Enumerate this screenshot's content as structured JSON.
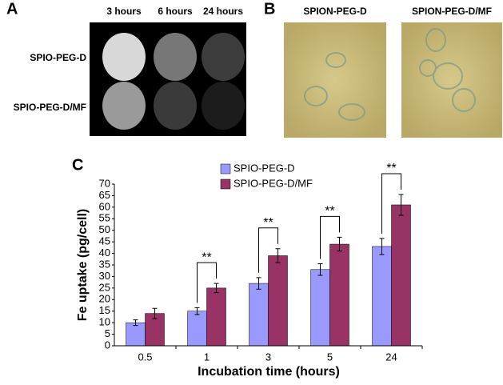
{
  "panel_a": {
    "letter": "A",
    "columns": [
      "3 hours",
      "6 hours",
      "24 hours"
    ],
    "rows": [
      "SPIO-PEG-D",
      "SPIO-PEG-D/MF"
    ]
  },
  "panel_b": {
    "letter": "B",
    "labels": [
      "SPION-PEG-D",
      "SPION-PEG-D/MF"
    ]
  },
  "chart_data": {
    "type": "bar",
    "letter": "C",
    "x_label": "Incubation time (hours)",
    "y_label": "Fe uptake (pg/cell)",
    "categories": [
      "0.5",
      "1",
      "3",
      "5",
      "24"
    ],
    "series": [
      {
        "name": "SPIO-PEG-D",
        "color": "#9999ff",
        "values": [
          10,
          15,
          27,
          33,
          43
        ],
        "errors": [
          1.2,
          1.5,
          2.5,
          2.5,
          3.5
        ]
      },
      {
        "name": "SPIO-PEG-D/MF",
        "color": "#993366",
        "values": [
          14,
          25,
          39,
          44,
          61
        ],
        "errors": [
          2.2,
          2,
          3,
          3,
          4.5
        ]
      }
    ],
    "ylim": [
      0,
      70
    ],
    "yticks": [
      0,
      5,
      10,
      15,
      20,
      25,
      30,
      35,
      40,
      45,
      50,
      55,
      60,
      65,
      70
    ],
    "annotations": [
      {
        "x": "1",
        "text": "**"
      },
      {
        "x": "3",
        "text": "**"
      },
      {
        "x": "5",
        "text": "**"
      },
      {
        "x": "24",
        "text": "**"
      }
    ],
    "legend": "top-center"
  }
}
